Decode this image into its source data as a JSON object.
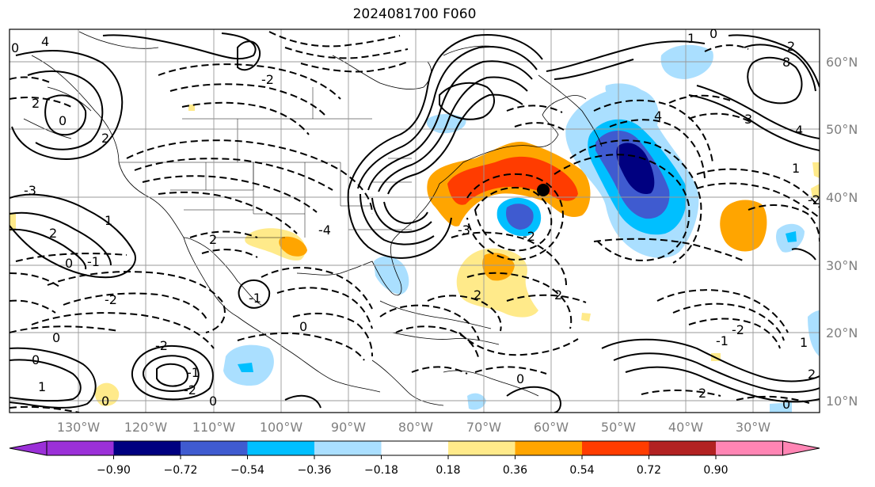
{
  "title": "2024081700 F060",
  "lon_labels": [
    "130°W",
    "120°W",
    "110°W",
    "100°W",
    "90°W",
    "80°W",
    "70°W",
    "60°W",
    "50°W",
    "40°W",
    "30°W"
  ],
  "lat_labels": [
    "60°N",
    "50°N",
    "40°N",
    "30°N",
    "20°N",
    "10°N"
  ],
  "colorbar": {
    "ticks": [
      "−0.90",
      "−0.72",
      "−0.54",
      "−0.36",
      "−0.18",
      "0.18",
      "0.36",
      "0.54",
      "0.72",
      "0.90"
    ],
    "colors": [
      "#9b30d8",
      "#000080",
      "#3f5bd0",
      "#00bfff",
      "#aadfff",
      "#ffffff",
      "#ffea8a",
      "#ffa500",
      "#ff3c00",
      "#b22222",
      "#ff85b4"
    ]
  },
  "contour_labels": [
    "0",
    "4",
    "2",
    "0",
    "2",
    "-3",
    "1",
    "2",
    "0",
    "-1",
    "2",
    "-2",
    "-1",
    "0",
    "0",
    "1",
    "0",
    "-2",
    "-2",
    "-1",
    "0",
    "0",
    "-4",
    "-3",
    "-2",
    "2",
    "2",
    "0",
    "4",
    "0",
    "1",
    "3",
    "8",
    "4",
    "2",
    "1",
    "-2",
    "-2",
    "2",
    "1",
    "2",
    "0",
    "-2",
    "-1"
  ],
  "marker": "storm-center-dot"
}
